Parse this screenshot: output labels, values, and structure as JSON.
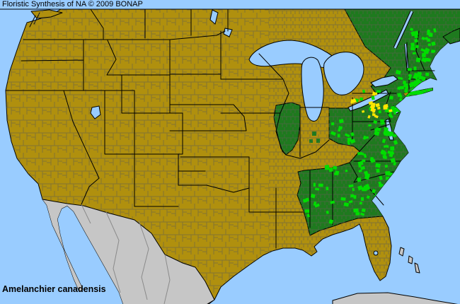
{
  "header": {
    "title": "Floristic Synthesis of NA © 2009 BONAP"
  },
  "species_label": {
    "text": "Amelanchier canadensis"
  },
  "map": {
    "type": "county-level species distribution choropleth of North America",
    "colors": {
      "water": "#99CCFF",
      "absent": "#B0900E",
      "state_present": "#1E7A1E",
      "county_present": "#00DD00",
      "county_rare": "#FFE600",
      "outside": "#C6C6C6",
      "border_state": "#000000",
      "border_county": "#5E5E52",
      "border_mexico": "#8A8A8A",
      "text": "#000000"
    },
    "dark_green_regions": [
      "Illinois",
      "Ohio",
      "Pennsylvania",
      "New York",
      "New Jersey",
      "Delaware",
      "Maryland",
      "Virginia",
      "West Virginia",
      "Tennessee",
      "North Carolina",
      "South Carolina",
      "Georgia",
      "Alabama",
      "Mississippi",
      "Connecticut",
      "Rhode Island",
      "Massachusetts",
      "Vermont",
      "New Hampshire",
      "Maine",
      "Quebec",
      "New Brunswick",
      "Nova Scotia"
    ],
    "gold_regions_notable": [
      "Kentucky",
      "Indiana",
      "Michigan",
      "Wisconsin",
      "Minnesota",
      "Iowa",
      "Missouri",
      "Arkansas",
      "Louisiana",
      "Florida",
      "Texas",
      "Oklahoma",
      "Kansas",
      "all western states",
      "Ontario",
      "prairie Canada"
    ],
    "gray_regions": [
      "Mexico",
      "Cuba",
      "Bahamas"
    ],
    "bright_green_speckle_areas": [
      "Maine",
      "New England coast",
      "Long Island",
      "eastern New York",
      "New Jersey",
      "eastern Pennsylvania",
      "Delmarva",
      "coastal Virginia",
      "Carolinas coastal plain",
      "Georgia",
      "Alabama",
      "Mississippi",
      "eastern Tennessee",
      "Ohio",
      "West Virginia"
    ],
    "yellow_speckle_areas": [
      "central Pennsylvania",
      "northern New Jersey",
      "northeastern Ohio",
      "southern New York"
    ]
  }
}
